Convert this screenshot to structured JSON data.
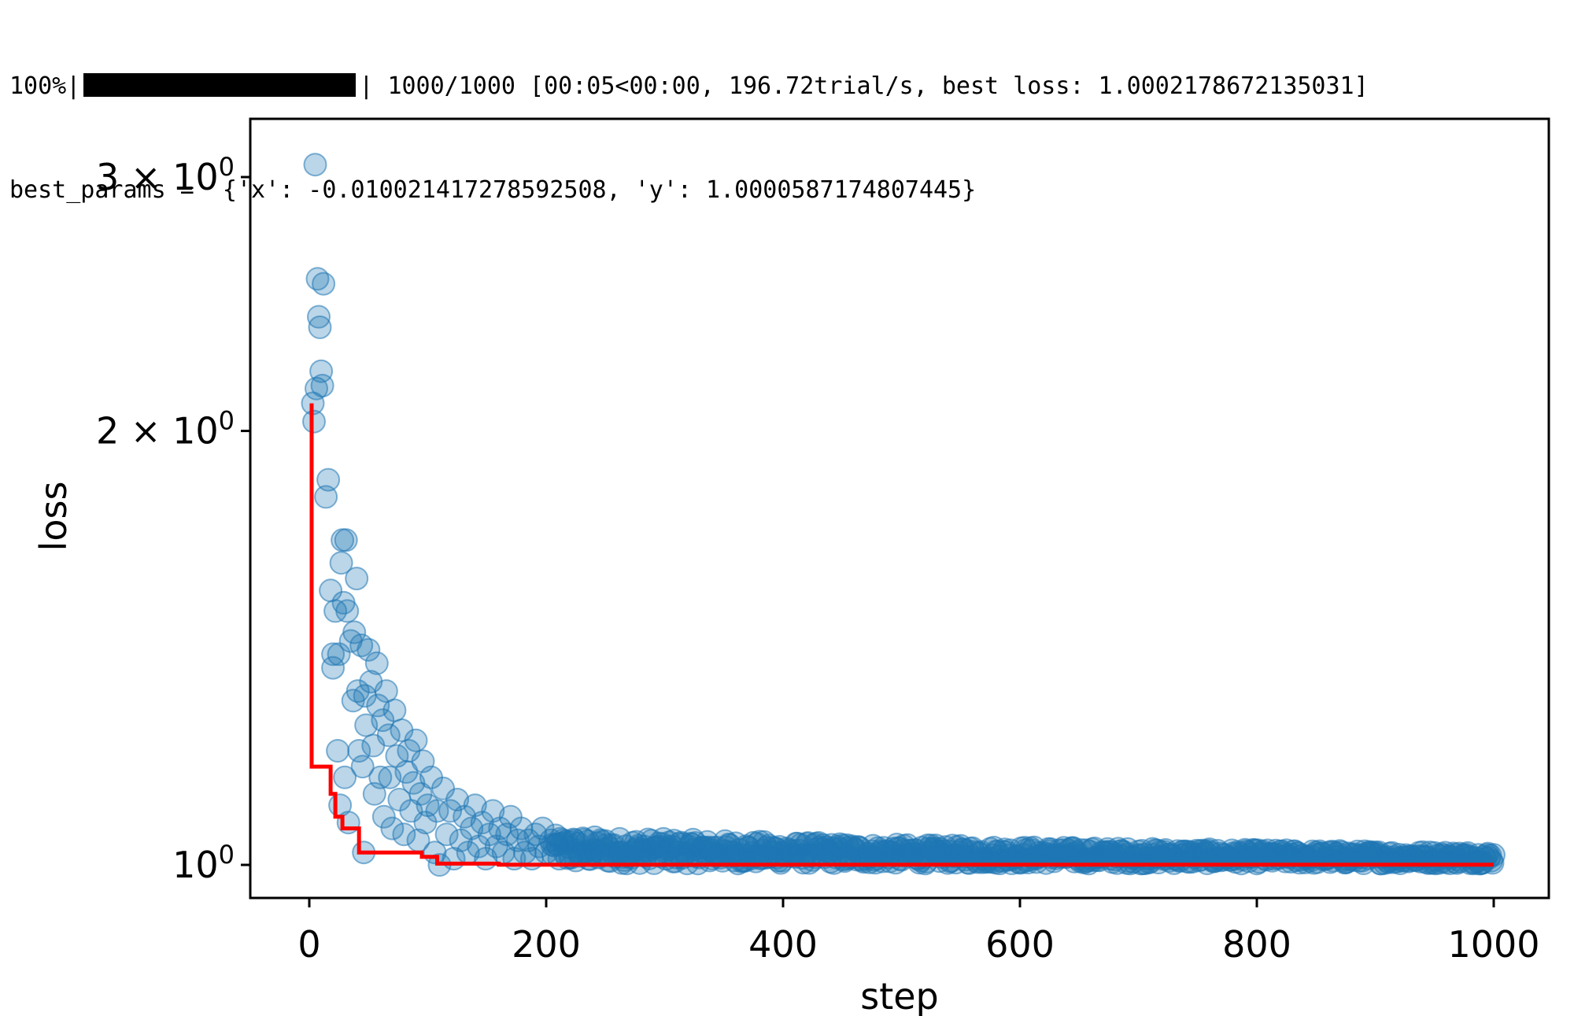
{
  "console": {
    "progress_percent_label": "100%",
    "progress_fraction": 1.0,
    "progress_sep_left": "|",
    "progress_sep_right": "|",
    "progress_stats": "1000/1000 [00:05<00:00, 196.72trial/s, best loss: 1.0002178672135031]",
    "best_params_line": "best_params =  {'x': -0.010021417278592508, 'y': 1.0000587174807445}"
  },
  "colors": {
    "scatter": "#1f77b4",
    "best_line": "#ff0000",
    "axes": "#000000"
  },
  "chart_data": {
    "type": "scatter",
    "xlabel": "step",
    "ylabel": "loss",
    "y_scale": "log",
    "xlim": [
      -50,
      1050
    ],
    "ylim": [
      0.95,
      3.2
    ],
    "x_ticks": [
      0,
      200,
      400,
      600,
      800,
      1000
    ],
    "x_tick_labels": [
      "0",
      "200",
      "400",
      "600",
      "800",
      "1000"
    ],
    "y_ticks": [
      1,
      2,
      3
    ],
    "y_tick_labels": [
      {
        "coef": "",
        "base": "10",
        "exp": "0"
      },
      {
        "coef": "2 × ",
        "base": "10",
        "exp": "0"
      },
      {
        "coef": "3 × ",
        "base": "10",
        "exp": "0"
      }
    ],
    "grid": false,
    "legend": "none",
    "series": [
      {
        "type": "scatter",
        "alpha": 0.3,
        "points": [
          [
            3,
            2.09
          ],
          [
            4,
            2.03
          ],
          [
            5,
            3.06
          ],
          [
            6,
            2.14
          ],
          [
            7,
            2.55
          ],
          [
            8,
            2.4
          ],
          [
            9,
            2.36
          ],
          [
            10,
            2.2
          ],
          [
            11,
            2.15
          ],
          [
            12,
            2.53
          ],
          [
            14,
            1.8
          ],
          [
            16,
            1.85
          ],
          [
            18,
            1.55
          ],
          [
            20,
            1.4
          ],
          [
            20,
            1.37
          ],
          [
            22,
            1.5
          ],
          [
            24,
            1.2
          ],
          [
            25,
            1.4
          ],
          [
            26,
            1.1
          ],
          [
            27,
            1.62
          ],
          [
            28,
            1.68
          ],
          [
            29,
            1.52
          ],
          [
            30,
            1.15
          ],
          [
            31,
            1.68
          ],
          [
            32,
            1.5
          ],
          [
            33,
            1.07
          ],
          [
            35,
            1.43
          ],
          [
            37,
            1.3
          ],
          [
            38,
            1.45
          ],
          [
            40,
            1.58
          ],
          [
            41,
            1.32
          ],
          [
            42,
            1.2
          ],
          [
            44,
            1.42
          ],
          [
            45,
            1.17
          ],
          [
            46,
            1.02
          ],
          [
            47,
            1.31
          ],
          [
            48,
            1.25
          ],
          [
            50,
            1.41
          ],
          [
            52,
            1.34
          ],
          [
            54,
            1.21
          ],
          [
            55,
            1.12
          ],
          [
            57,
            1.38
          ],
          [
            58,
            1.29
          ],
          [
            60,
            1.15
          ],
          [
            62,
            1.26
          ],
          [
            63,
            1.08
          ],
          [
            65,
            1.32
          ],
          [
            67,
            1.23
          ],
          [
            68,
            1.15
          ],
          [
            70,
            1.06
          ],
          [
            72,
            1.28
          ],
          [
            74,
            1.19
          ],
          [
            76,
            1.11
          ],
          [
            78,
            1.24
          ],
          [
            80,
            1.05
          ],
          [
            82,
            1.16
          ],
          [
            84,
            1.2
          ],
          [
            86,
            1.09
          ],
          [
            88,
            1.14
          ],
          [
            90,
            1.22
          ],
          [
            92,
            1.04
          ],
          [
            94,
            1.12
          ],
          [
            96,
            1.18
          ],
          [
            98,
            1.07
          ],
          [
            100,
            1.1
          ],
          [
            103,
            1.15
          ],
          [
            106,
            1.02
          ],
          [
            108,
            1.09
          ],
          [
            110,
            1.0
          ],
          [
            113,
            1.13
          ],
          [
            116,
            1.05
          ],
          [
            119,
            1.09
          ],
          [
            122,
            1.01
          ],
          [
            125,
            1.11
          ],
          [
            128,
            1.04
          ],
          [
            131,
            1.08
          ],
          [
            134,
            1.02
          ],
          [
            137,
            1.06
          ],
          [
            140,
            1.1
          ],
          [
            143,
            1.03
          ],
          [
            146,
            1.07
          ],
          [
            149,
            1.01
          ],
          [
            152,
            1.05
          ],
          [
            155,
            1.09
          ],
          [
            158,
            1.03
          ],
          [
            161,
            1.06
          ],
          [
            164,
            1.02
          ],
          [
            167,
            1.05
          ],
          [
            170,
            1.08
          ],
          [
            173,
            1.01
          ],
          [
            176,
            1.04
          ],
          [
            179,
            1.06
          ],
          [
            182,
            1.02
          ],
          [
            185,
            1.04
          ],
          [
            188,
            1.01
          ],
          [
            191,
            1.05
          ],
          [
            194,
            1.03
          ],
          [
            197,
            1.06
          ],
          [
            200,
            1.02
          ],
          [
            204,
            1.04
          ]
        ]
      },
      {
        "type": "step",
        "name": "",
        "points": [
          [
            2,
            2.09
          ],
          [
            2,
            1.17
          ],
          [
            18,
            1.17
          ],
          [
            18,
            1.12
          ],
          [
            22,
            1.12
          ],
          [
            22,
            1.08
          ],
          [
            28,
            1.08
          ],
          [
            28,
            1.06
          ],
          [
            42,
            1.06
          ],
          [
            42,
            1.02
          ],
          [
            95,
            1.02
          ],
          [
            95,
            1.013
          ],
          [
            108,
            1.013
          ],
          [
            108,
            1.002
          ],
          [
            160,
            1.002
          ],
          [
            160,
            1.0002
          ],
          [
            1000,
            1.0002
          ]
        ]
      }
    ]
  }
}
